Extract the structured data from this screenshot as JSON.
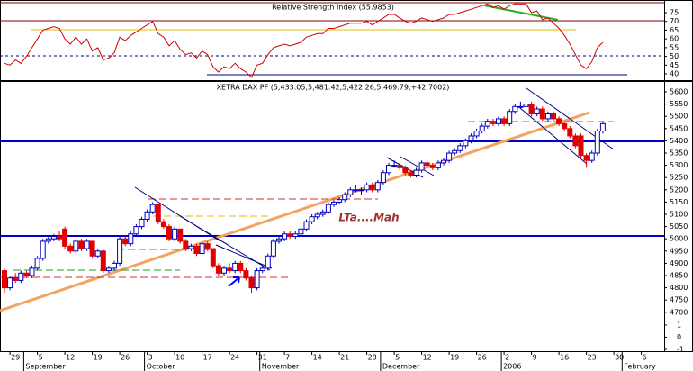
{
  "chart_data": [
    {
      "type": "line",
      "title": "Relative Strength Index (55.9853)",
      "color": "#d00000",
      "ylim": [
        36.9,
        81.2
      ],
      "yticks": [
        40,
        45,
        50,
        55,
        60,
        65,
        70,
        75
      ],
      "values": [
        46,
        45,
        48,
        46,
        50,
        55,
        60,
        65,
        66,
        67,
        66,
        60,
        57,
        61,
        57,
        60,
        53,
        55,
        48,
        49,
        52,
        61,
        59,
        62,
        64,
        66,
        68,
        70,
        63,
        61,
        56,
        59,
        54,
        51,
        52,
        49,
        53,
        51,
        44,
        41,
        44,
        43,
        46,
        43,
        41,
        38,
        45,
        46,
        51,
        55,
        56,
        57,
        56,
        57,
        58,
        61,
        62,
        63,
        63,
        66,
        66,
        67,
        68,
        69,
        69,
        69,
        70,
        68,
        70,
        72,
        74,
        74,
        72,
        70,
        69,
        70,
        72,
        71,
        70,
        71,
        72,
        74,
        74,
        75,
        76,
        77,
        78,
        79,
        80,
        78,
        79,
        77,
        79,
        80,
        80,
        80,
        75,
        76,
        71,
        72,
        69,
        66,
        62,
        57,
        51,
        45,
        43,
        47,
        55,
        58,
        null,
        null,
        null,
        null,
        null,
        null,
        null,
        null,
        null,
        null,
        null
      ]
    },
    {
      "type": "candlestick",
      "title": "XETRA DAX PF (5,433.05,5,481.42,5,422.26,5,469.79,+42.7002)",
      "annotation": "LTa....Mah",
      "up_color": "#0000c0",
      "down_color": "#e00000",
      "ylim": [
        4541.2,
        5636.8
      ],
      "yticks": [
        5600,
        5550,
        5500,
        5450,
        5400,
        5350,
        5300,
        5250,
        5200,
        5150,
        5100,
        5050,
        5000,
        4950,
        4900,
        4850,
        4800,
        4750,
        4700
      ],
      "y2lim": [
        -1.15,
        20.9
      ],
      "y2ticks": [
        1,
        0,
        -1
      ],
      "categories": [
        null,
        "29",
        null,
        null,
        null,
        null,
        "5",
        null,
        null,
        null,
        null,
        "12",
        null,
        null,
        null,
        null,
        "19",
        null,
        null,
        null,
        null,
        "26",
        null,
        null,
        null,
        null,
        "3",
        null,
        null,
        null,
        null,
        "10",
        null,
        null,
        null,
        null,
        "17",
        null,
        null,
        null,
        null,
        "24",
        null,
        null,
        null,
        null,
        "31",
        null,
        null,
        null,
        null,
        "7",
        null,
        null,
        null,
        null,
        "14",
        null,
        null,
        null,
        null,
        "21",
        null,
        null,
        null,
        null,
        "28",
        null,
        null,
        null,
        null,
        "5",
        null,
        null,
        null,
        null,
        "12",
        null,
        null,
        null,
        null,
        "19",
        null,
        null,
        null,
        null,
        "26",
        null,
        null,
        null,
        null,
        "2",
        null,
        null,
        null,
        null,
        "9",
        null,
        null,
        null,
        null,
        "16",
        null,
        null,
        null,
        null,
        "23",
        null,
        null,
        null,
        null,
        "30",
        null,
        null,
        null,
        null,
        "6",
        null,
        null,
        null,
        null
      ],
      "months": [
        {
          "label": "September",
          "at": 4
        },
        {
          "label": "October",
          "at": 26
        },
        {
          "label": "November",
          "at": 47
        },
        {
          "label": "December",
          "at": 69
        },
        {
          "label": "2006",
          "at": 91
        },
        {
          "label": "February",
          "at": 113
        }
      ],
      "ohlc": [
        [
          4870,
          4880,
          4780,
          4800
        ],
        [
          4800,
          4850,
          4790,
          4840
        ],
        [
          4840,
          4860,
          4820,
          4830
        ],
        [
          4830,
          4870,
          4820,
          4860
        ],
        [
          4860,
          4870,
          4840,
          4850
        ],
        [
          4850,
          4890,
          4840,
          4880
        ],
        [
          4880,
          4930,
          4870,
          4920
        ],
        [
          4920,
          5000,
          4910,
          4990
        ],
        [
          4990,
          5010,
          4980,
          5000
        ],
        [
          5000,
          5020,
          4990,
          5010
        ],
        [
          5010,
          5030,
          4990,
          5000
        ],
        [
          5040,
          5050,
          4960,
          4970
        ],
        [
          4970,
          4980,
          4940,
          4950
        ],
        [
          4950,
          5000,
          4940,
          4990
        ],
        [
          4990,
          5000,
          4950,
          4960
        ],
        [
          4960,
          5000,
          4950,
          4990
        ],
        [
          4990,
          4990,
          4920,
          4930
        ],
        [
          4930,
          4960,
          4920,
          4950
        ],
        [
          4950,
          4960,
          4860,
          4870
        ],
        [
          4870,
          4890,
          4860,
          4880
        ],
        [
          4880,
          4910,
          4870,
          4900
        ],
        [
          4900,
          5010,
          4890,
          5000
        ],
        [
          5000,
          5010,
          4970,
          4980
        ],
        [
          4980,
          5030,
          4970,
          5020
        ],
        [
          5020,
          5060,
          5010,
          5050
        ],
        [
          5050,
          5090,
          5040,
          5080
        ],
        [
          5080,
          5120,
          5070,
          5110
        ],
        [
          5110,
          5150,
          5100,
          5140
        ],
        [
          5140,
          5140,
          5060,
          5070
        ],
        [
          5070,
          5080,
          5040,
          5050
        ],
        [
          5050,
          5060,
          4990,
          5000
        ],
        [
          5000,
          5050,
          4990,
          5040
        ],
        [
          5040,
          5040,
          4980,
          4990
        ],
        [
          4990,
          5000,
          4950,
          4960
        ],
        [
          4960,
          4980,
          4950,
          4970
        ],
        [
          4970,
          4980,
          4930,
          4940
        ],
        [
          4940,
          4990,
          4930,
          4980
        ],
        [
          4980,
          4990,
          4950,
          4960
        ],
        [
          4960,
          4960,
          4880,
          4890
        ],
        [
          4890,
          4900,
          4850,
          4860
        ],
        [
          4860,
          4890,
          4850,
          4880
        ],
        [
          4880,
          4900,
          4860,
          4870
        ],
        [
          4870,
          4910,
          4860,
          4900
        ],
        [
          4900,
          4910,
          4860,
          4870
        ],
        [
          4870,
          4880,
          4830,
          4840
        ],
        [
          4840,
          4850,
          4780,
          4800
        ],
        [
          4800,
          4880,
          4790,
          4870
        ],
        [
          4870,
          4890,
          4860,
          4880
        ],
        [
          4880,
          4940,
          4870,
          4930
        ],
        [
          4930,
          5000,
          4920,
          4990
        ],
        [
          4990,
          5010,
          4980,
          5000
        ],
        [
          5000,
          5030,
          4990,
          5020
        ],
        [
          5020,
          5030,
          5000,
          5010
        ],
        [
          5010,
          5030,
          5000,
          5020
        ],
        [
          5020,
          5050,
          5010,
          5040
        ],
        [
          5040,
          5080,
          5030,
          5070
        ],
        [
          5070,
          5100,
          5060,
          5090
        ],
        [
          5090,
          5110,
          5080,
          5100
        ],
        [
          5100,
          5120,
          5090,
          5110
        ],
        [
          5110,
          5150,
          5100,
          5140
        ],
        [
          5140,
          5160,
          5130,
          5150
        ],
        [
          5150,
          5170,
          5140,
          5160
        ],
        [
          5160,
          5190,
          5150,
          5180
        ],
        [
          5180,
          5210,
          5170,
          5200
        ],
        [
          5200,
          5220,
          5190,
          5200
        ],
        [
          5200,
          5210,
          5180,
          5200
        ],
        [
          5200,
          5230,
          5190,
          5220
        ],
        [
          5220,
          5230,
          5190,
          5200
        ],
        [
          5200,
          5240,
          5190,
          5230
        ],
        [
          5230,
          5280,
          5220,
          5270
        ],
        [
          5270,
          5310,
          5260,
          5300
        ],
        [
          5300,
          5320,
          5290,
          5300
        ],
        [
          5300,
          5310,
          5280,
          5290
        ],
        [
          5290,
          5300,
          5260,
          5270
        ],
        [
          5270,
          5280,
          5250,
          5260
        ],
        [
          5260,
          5290,
          5250,
          5280
        ],
        [
          5280,
          5320,
          5270,
          5310
        ],
        [
          5310,
          5320,
          5290,
          5300
        ],
        [
          5300,
          5310,
          5280,
          5290
        ],
        [
          5290,
          5320,
          5280,
          5310
        ],
        [
          5310,
          5330,
          5300,
          5320
        ],
        [
          5320,
          5360,
          5310,
          5350
        ],
        [
          5350,
          5370,
          5340,
          5360
        ],
        [
          5360,
          5390,
          5350,
          5380
        ],
        [
          5380,
          5410,
          5370,
          5400
        ],
        [
          5400,
          5430,
          5390,
          5420
        ],
        [
          5420,
          5450,
          5410,
          5440
        ],
        [
          5440,
          5470,
          5430,
          5460
        ],
        [
          5460,
          5490,
          5450,
          5480
        ],
        [
          5480,
          5490,
          5460,
          5470
        ],
        [
          5470,
          5500,
          5460,
          5490
        ],
        [
          5490,
          5500,
          5460,
          5470
        ],
        [
          5470,
          5530,
          5460,
          5520
        ],
        [
          5520,
          5550,
          5510,
          5540
        ],
        [
          5540,
          5560,
          5530,
          5540
        ],
        [
          5540,
          5560,
          5530,
          5550
        ],
        [
          5550,
          5560,
          5500,
          5510
        ],
        [
          5510,
          5540,
          5500,
          5530
        ],
        [
          5530,
          5540,
          5480,
          5490
        ],
        [
          5490,
          5520,
          5480,
          5510
        ],
        [
          5510,
          5520,
          5480,
          5490
        ],
        [
          5490,
          5500,
          5460,
          5470
        ],
        [
          5470,
          5480,
          5440,
          5450
        ],
        [
          5450,
          5460,
          5410,
          5420
        ],
        [
          5420,
          5430,
          5370,
          5380
        ],
        [
          5420,
          5430,
          5330,
          5340
        ],
        [
          5340,
          5350,
          5290,
          5320
        ],
        [
          5320,
          5360,
          5310,
          5350
        ],
        [
          5350,
          5450,
          5340,
          5440
        ],
        [
          5440,
          5480,
          5430,
          5470
        ],
        null,
        null,
        null,
        null,
        null,
        null,
        null,
        null,
        null,
        null,
        null
      ]
    }
  ]
}
